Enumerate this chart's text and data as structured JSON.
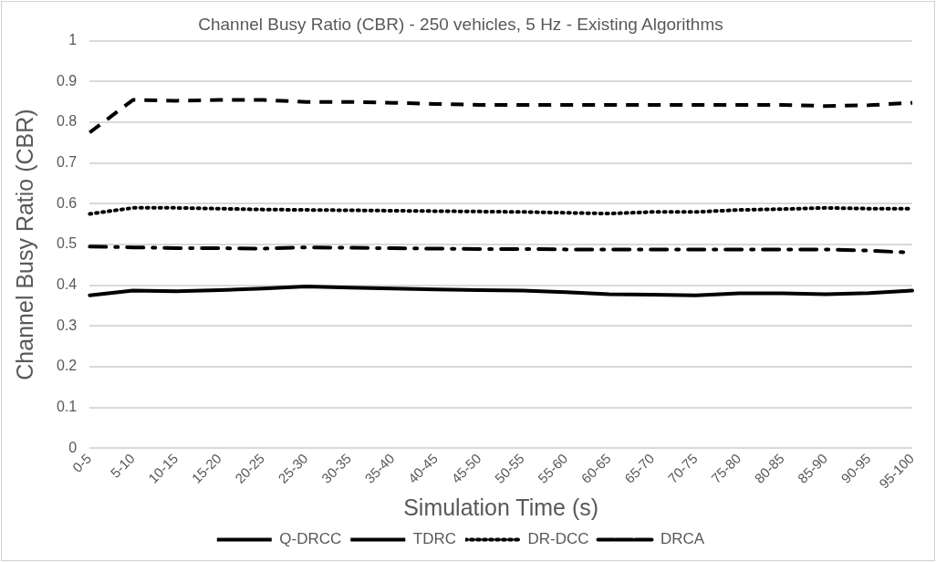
{
  "chart_data": {
    "type": "line",
    "title": "Channel Busy Ratio (CBR) - 250 vehicles, 5 Hz - Existing Algorithms",
    "xlabel": "Simulation Time (s)",
    "ylabel": "Channel Busy Ratio (CBR)",
    "categories": [
      "0-5",
      "5-10",
      "10-15",
      "15-20",
      "20-25",
      "25-30",
      "30-35",
      "35-40",
      "40-45",
      "45-50",
      "50-55",
      "55-60",
      "60-65",
      "65-70",
      "70-75",
      "75-80",
      "80-85",
      "85-90",
      "90-95",
      "95-100"
    ],
    "series": [
      {
        "name": "Q-DRCC",
        "color": "#000000",
        "line_style": "solid",
        "values": [
          0.375,
          0.387,
          0.385,
          0.388,
          0.392,
          0.397,
          0.394,
          0.392,
          0.39,
          0.388,
          0.387,
          0.383,
          0.378,
          0.377,
          0.375,
          0.38,
          0.38,
          0.378,
          0.381,
          0.387
        ]
      },
      {
        "name": "TDRC",
        "color": "#000000",
        "line_style": "dashed",
        "values": [
          0.775,
          0.855,
          0.853,
          0.855,
          0.855,
          0.85,
          0.85,
          0.848,
          0.845,
          0.843,
          0.843,
          0.843,
          0.843,
          0.843,
          0.843,
          0.843,
          0.843,
          0.84,
          0.842,
          0.848
        ]
      },
      {
        "name": "DR-DCC",
        "color": "#000000",
        "line_style": "dotted",
        "values": [
          0.575,
          0.59,
          0.59,
          0.588,
          0.586,
          0.585,
          0.584,
          0.583,
          0.582,
          0.581,
          0.58,
          0.578,
          0.576,
          0.58,
          0.58,
          0.585,
          0.587,
          0.59,
          0.588,
          0.588
        ]
      },
      {
        "name": "DRCA",
        "color": "#000000",
        "line_style": "dashdot",
        "values": [
          0.495,
          0.493,
          0.491,
          0.491,
          0.49,
          0.493,
          0.492,
          0.491,
          0.49,
          0.489,
          0.489,
          0.488,
          0.488,
          0.488,
          0.488,
          0.488,
          0.488,
          0.488,
          0.485,
          0.48
        ]
      }
    ],
    "ylim": [
      0,
      1
    ],
    "yticks": [
      0,
      0.1,
      0.2,
      0.3,
      0.4,
      0.5,
      0.6,
      0.7,
      0.8,
      0.9,
      1
    ],
    "grid": "y",
    "legend": "bottom",
    "marker": "none"
  }
}
